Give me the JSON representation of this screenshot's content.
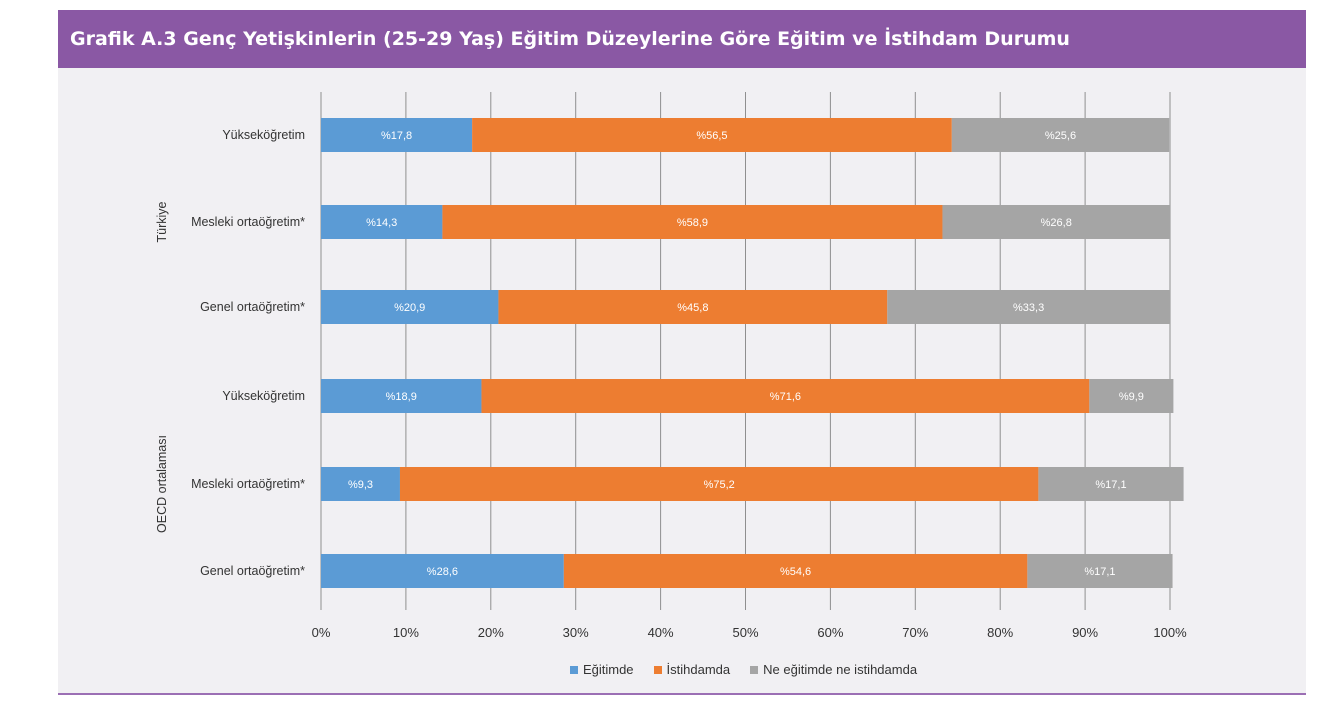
{
  "header": {
    "title": "Grafik A.3 Genç Yetişkinlerin (25-29 Yaş) Eğitim Düzeylerine Göre Eğitim ve İstihdam Durumu"
  },
  "colors": {
    "header_bg": "#8a58a4",
    "panel_bg": "#f1f0f3",
    "egitimde": "#5b9bd5",
    "istihdamda": "#ed7d31",
    "ne": "#a5a5a5"
  },
  "chart_data": {
    "type": "bar",
    "orientation": "horizontal-stacked",
    "xlim": [
      0,
      100
    ],
    "x_ticks": [
      "0%",
      "10%",
      "20%",
      "30%",
      "40%",
      "50%",
      "60%",
      "70%",
      "80%",
      "90%",
      "100%"
    ],
    "grid": true,
    "legend_position": "bottom",
    "groups": [
      {
        "name": "Türkiye",
        "categories": [
          "Yükseköğretim",
          "Mesleki ortaöğretim*",
          "Genel ortaöğretim*"
        ]
      },
      {
        "name": "OECD ortalaması",
        "categories": [
          "Yükseköğretim",
          "Mesleki ortaöğretim*",
          "Genel ortaöğretim*"
        ]
      }
    ],
    "series": [
      {
        "name": "Eğitimde",
        "color": "#5b9bd5",
        "values": [
          17.8,
          14.3,
          20.9,
          18.9,
          9.3,
          28.6
        ],
        "labels": [
          "%17,8",
          "%14,3",
          "%20,9",
          "%18,9",
          "%9,3",
          "%28,6"
        ]
      },
      {
        "name": "İstihdamda",
        "color": "#ed7d31",
        "values": [
          56.5,
          58.9,
          45.8,
          71.6,
          75.2,
          54.6
        ],
        "labels": [
          "%56,5",
          "%58,9",
          "%45,8",
          "%71,6",
          "%75,2",
          "%54,6"
        ]
      },
      {
        "name": "Ne eğitimde ne istihdamda",
        "color": "#a5a5a5",
        "values": [
          25.6,
          26.8,
          33.3,
          9.9,
          17.1,
          17.1
        ],
        "labels": [
          "%25,6",
          "%26,8",
          "%33,3",
          "%9,9",
          "%17,1",
          "%17,1"
        ]
      }
    ]
  }
}
